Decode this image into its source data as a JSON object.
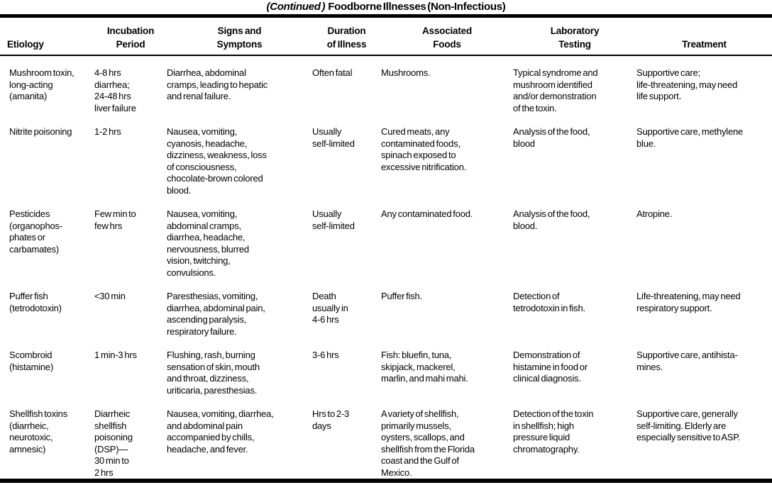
{
  "title": {
    "continued": "(Continued )",
    "main": "Foodborne Illnesses (Non-Infectious)"
  },
  "table": {
    "columns": {
      "etiology": "Etiology",
      "incubation": "Incubation\nPeriod",
      "signs": "Signs and\nSymptons",
      "duration": "Duration\nof Illness",
      "foods": "Associated\nFoods",
      "laboratory": "Laboratory\nTesting",
      "treatment": "Treatment"
    },
    "rows": [
      {
        "etiology": "Mushroom toxin,\nlong-acting\n(amanita)",
        "incubation": "4-8 hrs\ndiarrhea;\n24-48 hrs\nliver failure",
        "signs": "Diarrhea, abdominal\ncramps, leading to hepatic\nand renal failure.",
        "duration": "Often fatal",
        "foods": "Mushrooms.",
        "laboratory": "Typical syndrome and\nmushroom identified\nand/or demonstration\nof the toxin.",
        "treatment": "Supportive care;\nlife-threatening, may need\nlife support."
      },
      {
        "etiology": "Nitrite poisoning",
        "incubation": "1-2 hrs",
        "signs": "Nausea, vomiting,\ncyanosis, headache,\ndizziness, weakness, loss\nof consciousness,\nchocolate-brown colored\nblood.",
        "duration": "Usually\nself-limited",
        "foods": "Cured meats, any\ncontaminated foods,\nspinach exposed to\nexcessive nitrification.",
        "laboratory": "Analysis of the food,\nblood",
        "treatment": "Supportive care, methylene\nblue."
      },
      {
        "etiology": "Pesticides\n(organophos-\nphates or\ncarbamates)",
        "incubation": "Few min to\nfew hrs",
        "signs": "Nausea, vomiting,\nabdominal cramps,\ndiarrhea, headache,\nnervousness, blurred\nvision, twitching,\nconvulsions.",
        "duration": "Usually\nself-limited",
        "foods": "Any contaminated food.",
        "laboratory": "Analysis of the food,\nblood.",
        "treatment": "Atropine."
      },
      {
        "etiology": "Puffer fish\n(tetrodotoxin)",
        "incubation": "<30 min",
        "signs": "Paresthesias, vomiting,\ndiarrhea, abdominal pain,\nascending paralysis,\nrespiratory failure.",
        "duration": "Death\nusually in\n4-6 hrs",
        "foods": "Puffer fish.",
        "laboratory": "Detection of\ntetrodotoxin in fish.",
        "treatment": "Life-threatening, may need\nrespiratory support."
      },
      {
        "etiology": "Scombroid\n(histamine)",
        "incubation": "1 min-3 hrs",
        "signs": "Flushing, rash, burning\nsensation of skin, mouth\nand throat, dizziness,\nuriticaria, paresthesias.",
        "duration": "3-6 hrs",
        "foods": "Fish: bluefin, tuna,\nskipjack,  mackerel,\nmarlin, and mahi mahi.",
        "laboratory": "Demonstration of\nhistamine in food or\nclinical diagnosis.",
        "treatment": "Supportive care, antihista-\nmines."
      },
      {
        "etiology": "Shellfish toxins\n(diarrheic,\nneurotoxic,\namnesic)",
        "incubation": "Diarrheic\nshellfish\npoisoning\n(DSP)—\n30 min to\n2 hrs",
        "signs": "Nausea, vomiting, diarrhea,\nand abdominal pain\naccompanied by chills,\nheadache, and fever.",
        "duration": "Hrs to 2-3\ndays",
        "foods": "A variety of shellfish,\nprimarily mussels,\noysters, scallops, and\nshellfish from the Florida\ncoast and the Gulf of\nMexico.",
        "laboratory": "Detection of the toxin\nin shellfish; high\npressure liquid\nchromatography.",
        "treatment": "Supportive care, generally\nself-limiting. Elderly are\nespecially sensitive to ASP."
      }
    ]
  }
}
